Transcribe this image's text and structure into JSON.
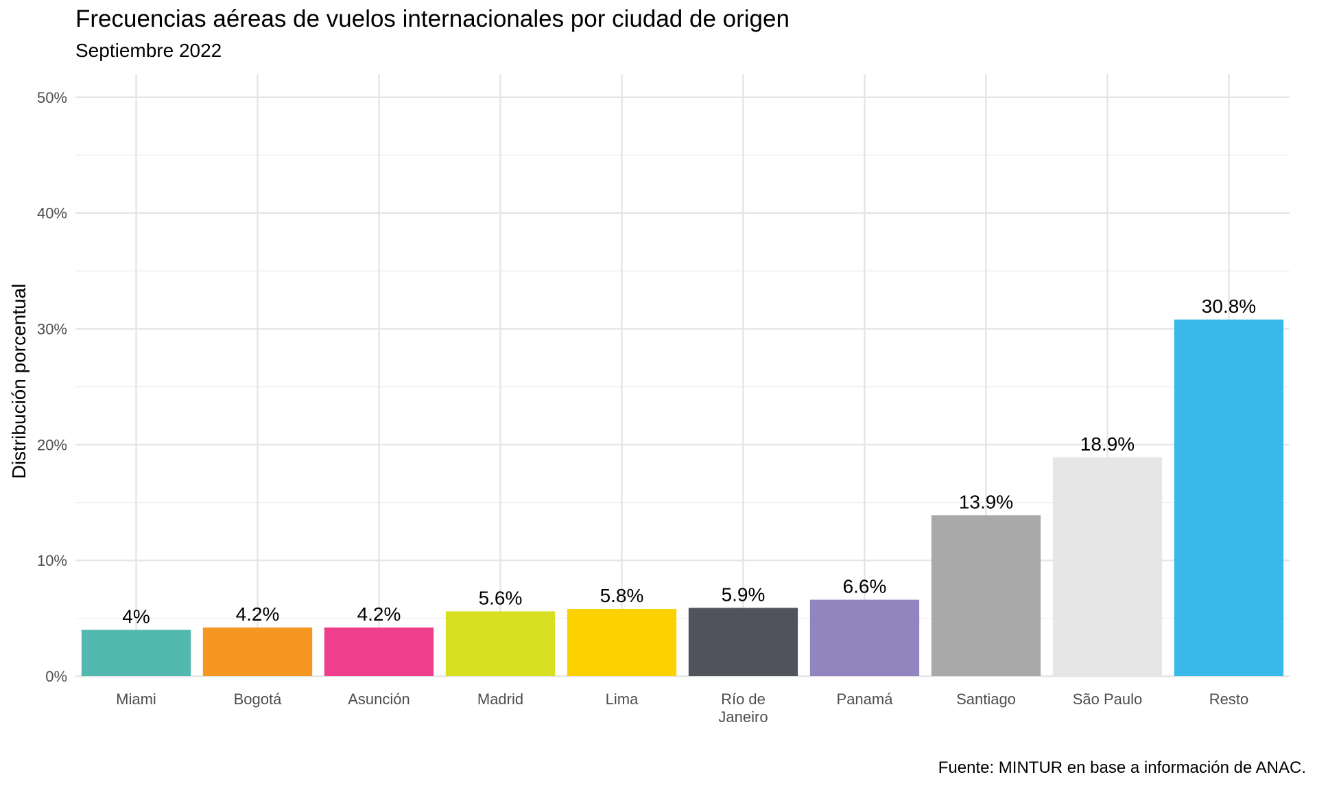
{
  "chart_data": {
    "type": "bar",
    "title": "Frecuencias aéreas de vuelos internacionales por ciudad de origen",
    "subtitle": "Septiembre 2022",
    "ylabel": "Distribución porcentual",
    "xlabel": "",
    "caption": "Fuente: MINTUR en base a información de ANAC.",
    "categories": [
      "Miami",
      "Bogotá",
      "Asunción",
      "Madrid",
      "Lima",
      "Río de Janeiro",
      "Panamá",
      "Santiago",
      "São Paulo",
      "Resto"
    ],
    "category_lines": [
      [
        "Miami"
      ],
      [
        "Bogotá"
      ],
      [
        "Asunción"
      ],
      [
        "Madrid"
      ],
      [
        "Lima"
      ],
      [
        "Río de",
        "Janeiro"
      ],
      [
        "Panamá"
      ],
      [
        "Santiago"
      ],
      [
        "São Paulo"
      ],
      [
        "Resto"
      ]
    ],
    "values": [
      4.0,
      4.2,
      4.2,
      5.6,
      5.8,
      5.9,
      6.6,
      13.9,
      18.9,
      30.8
    ],
    "data_labels": [
      "4%",
      "4.2%",
      "4.2%",
      "5.6%",
      "5.8%",
      "5.9%",
      "6.6%",
      "13.9%",
      "18.9%",
      "30.8%"
    ],
    "colors": [
      "#52b8b0",
      "#f59720",
      "#ee3e8c",
      "#d6e020",
      "#fdd000",
      "#50535c",
      "#9284be",
      "#a9a9a9",
      "#e6e6e6",
      "#38b9e9"
    ],
    "ylim": [
      0,
      52
    ],
    "yticks": [
      0,
      10,
      20,
      30,
      40,
      50
    ],
    "ytick_labels": [
      "0%",
      "10%",
      "20%",
      "30%",
      "40%",
      "50%"
    ],
    "grid": true,
    "legend": "none"
  }
}
